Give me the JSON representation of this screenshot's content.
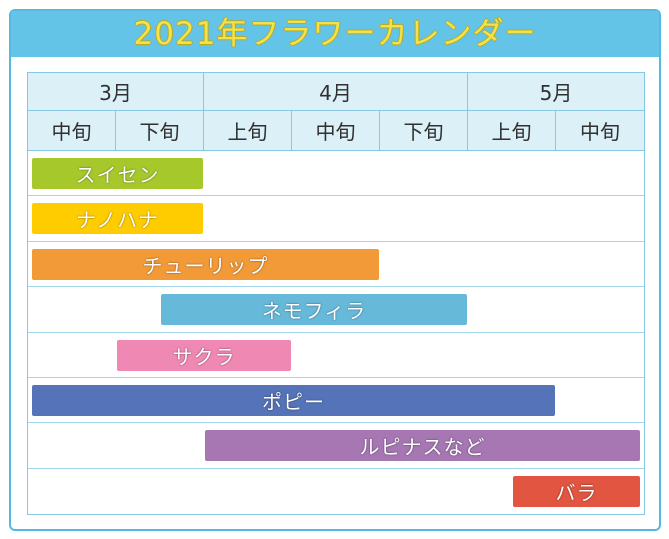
{
  "theme": {
    "frame": "#55b9df",
    "band": "#63c4e7",
    "title_text": "#f2e34c",
    "title_edge": "#b9a822",
    "header_bg": "#dcf0f8",
    "grid": "#87c8e3",
    "row_line": "#a0d4e9",
    "header_text": "#303030"
  },
  "chart_data": {
    "type": "bar",
    "orientation": "horizontal",
    "title": "2021年フラワーカレンダー",
    "months": [
      {
        "label": "3月",
        "periods": [
          "中旬",
          "下旬"
        ]
      },
      {
        "label": "4月",
        "periods": [
          "上旬",
          "中旬",
          "下旬"
        ]
      },
      {
        "label": "5月",
        "periods": [
          "上旬",
          "中旬"
        ]
      }
    ],
    "xlim": [
      0,
      7
    ],
    "grid": true,
    "legend": false,
    "bars": [
      {
        "name": "スイセン",
        "start": 0,
        "end": 2,
        "color": "#a7c82b"
      },
      {
        "name": "ナノハナ",
        "start": 0,
        "end": 2,
        "color": "#ffcc00"
      },
      {
        "name": "チューリップ",
        "start": 0,
        "end": 4,
        "color": "#f29a38"
      },
      {
        "name": "ネモフィラ",
        "start": 1.5,
        "end": 5,
        "color": "#67b9da"
      },
      {
        "name": "サクラ",
        "start": 1,
        "end": 3,
        "color": "#f088b4"
      },
      {
        "name": "ポピー",
        "start": 0,
        "end": 6,
        "color": "#5573b8"
      },
      {
        "name": "ルピナスなど",
        "start": 2,
        "end": 7,
        "color": "#a677b3"
      },
      {
        "name": "バラ",
        "start": 5.5,
        "end": 7,
        "color": "#e15541"
      }
    ]
  }
}
